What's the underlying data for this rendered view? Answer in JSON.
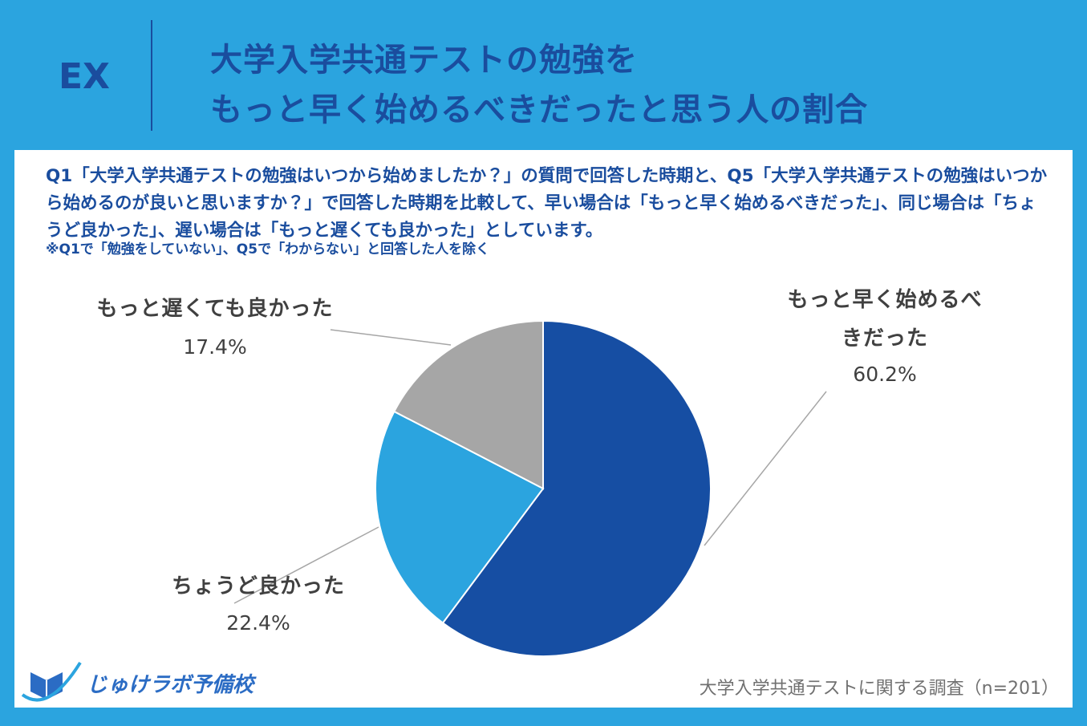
{
  "header": {
    "badge": "EX",
    "title": [
      "大学入学共通テストの勉強を",
      "もっと早く始めるべきだったと思う人の割合"
    ]
  },
  "note": [
    "Q1「大学入学共通テストの勉強はいつから始めましたか？」の質問で回答した時期と、Q5「大学入学共通テストの勉強はいつから始めるのが良いと思いますか？」で回答した時期を比較して、早い場合は「もっと早く始めるべきだった」、同じ場合は「ちょうど良かった」、遅い場合は「もっと遅くても良かった」としています。",
    "※Q1で「勉強をしていない」、Q5で「わからない」と回答した人を除く"
  ],
  "chart_data": {
    "type": "pie",
    "categories": [
      "もっと早く始めるべきだった",
      "ちょうど良かった",
      "もっと遅くても良かった"
    ],
    "values": [
      60.2,
      22.4,
      17.4
    ],
    "value_labels": [
      "60.2%",
      "22.4%",
      "17.4%"
    ],
    "colors": [
      "#164ea3",
      "#2ba4df",
      "#a6a6a6"
    ]
  },
  "footer": {
    "logo": "じゅけラボ予備校",
    "source": "大学入学共通テストに関する調査（n=201）"
  }
}
